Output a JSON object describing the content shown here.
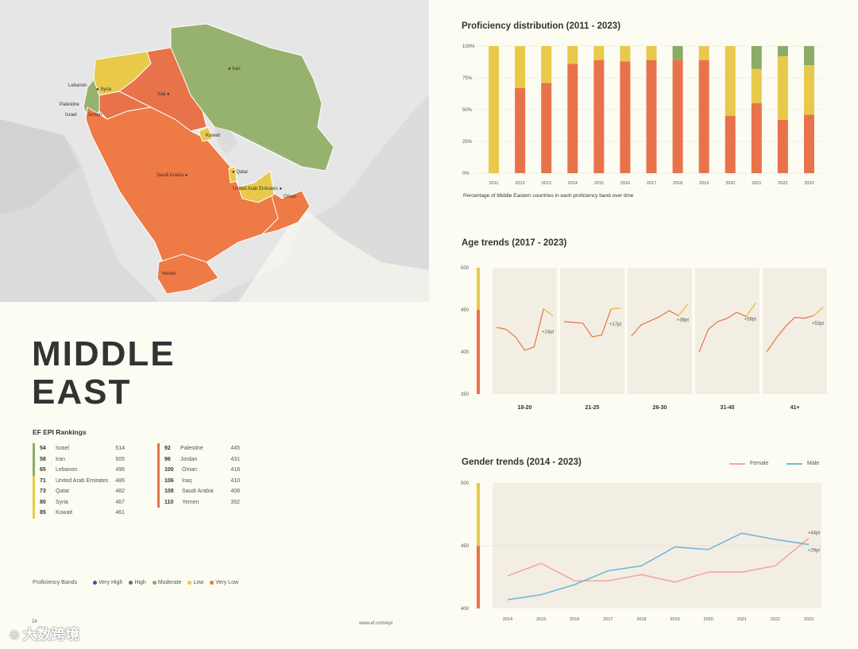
{
  "region_title_line1": "MIDDLE",
  "region_title_line2": "EAST",
  "rankings_title": "EF EPI Rankings",
  "rankings_left": [
    {
      "rank": "54",
      "country": "Israel",
      "score": "514",
      "color": "#8aac66"
    },
    {
      "rank": "58",
      "country": "Iran",
      "score": "505",
      "color": "#8aac66"
    },
    {
      "rank": "65",
      "country": "Lebanon",
      "score": "496",
      "color": "#8aac66"
    },
    {
      "rank": "71",
      "country": "United Arab Emirates",
      "score": "486",
      "color": "#e8c94a"
    },
    {
      "rank": "73",
      "country": "Qatar",
      "score": "482",
      "color": "#e8c94a"
    },
    {
      "rank": "80",
      "country": "Syria",
      "score": "467",
      "color": "#e8c94a"
    },
    {
      "rank": "85",
      "country": "Kuwait",
      "score": "461",
      "color": "#e8c94a"
    }
  ],
  "rankings_right": [
    {
      "rank": "92",
      "country": "Palestine",
      "score": "445",
      "color": "#e8734a"
    },
    {
      "rank": "96",
      "country": "Jordan",
      "score": "431",
      "color": "#e8734a"
    },
    {
      "rank": "100",
      "country": "Oman",
      "score": "418",
      "color": "#e8734a"
    },
    {
      "rank": "106",
      "country": "Iraq",
      "score": "410",
      "color": "#e8734a"
    },
    {
      "rank": "108",
      "country": "Saudi Arabia",
      "score": "408",
      "color": "#e8734a"
    },
    {
      "rank": "110",
      "country": "Yemen",
      "score": "392",
      "color": "#e8734a"
    }
  ],
  "bands_label": "Proficiency Bands",
  "bands": [
    {
      "label": "Very High",
      "color": "#3a55a4"
    },
    {
      "label": "High",
      "color": "#4f7a63"
    },
    {
      "label": "Moderate",
      "color": "#8aac66"
    },
    {
      "label": "Low",
      "color": "#e8c94a"
    },
    {
      "label": "Very Low",
      "color": "#e8734a"
    }
  ],
  "footer_url": "www.ef.com/epi",
  "page_number": "24",
  "watermark": "大数跨境",
  "map_labels": [
    "Iran",
    "Lebanon",
    "Syria",
    "Palestine",
    "Israel",
    "Jordan",
    "Iraq",
    "Kuwait",
    "Qatar",
    "Saudi Arabia",
    "United Arab Emirates",
    "Oman",
    "Yemen"
  ],
  "colors": {
    "very_low": "#e8734a",
    "low": "#e8c94a",
    "moderate": "#8aac66",
    "female": "#f0a8a8",
    "male": "#6db8d8"
  },
  "chart_data": [
    {
      "type": "bar",
      "stacked": true,
      "title": "Proficiency distribution (2011 - 2023)",
      "caption": "Percentage of Middle Eastern countries in each proficiency band over time",
      "categories": [
        "2011",
        "2012",
        "2013",
        "2014",
        "2015",
        "2016",
        "2017",
        "2018",
        "2019",
        "2020",
        "2021",
        "2022",
        "2023"
      ],
      "yticks": [
        "0%",
        "25%",
        "50%",
        "75%",
        "100%"
      ],
      "ylim": [
        0,
        100
      ],
      "series": [
        {
          "band": "very_low",
          "values": [
            0,
            67,
            71,
            86,
            89,
            88,
            89,
            89,
            89,
            45,
            55,
            42,
            46
          ]
        },
        {
          "band": "low",
          "values": [
            100,
            33,
            29,
            14,
            11,
            12,
            11,
            0,
            11,
            55,
            27,
            50,
            39
          ]
        },
        {
          "band": "moderate",
          "values": [
            0,
            0,
            0,
            0,
            0,
            0,
            0,
            11,
            0,
            0,
            18,
            8,
            15
          ]
        }
      ]
    },
    {
      "type": "line",
      "title": "Age trends (2017 - 2023)",
      "yticks": [
        "350",
        "400",
        "450",
        "500"
      ],
      "ylim": [
        350,
        500
      ],
      "groups": [
        {
          "label": "18-20",
          "change": "+14pt",
          "values": [
            429,
            427,
            418,
            402,
            406,
            451,
            443
          ]
        },
        {
          "label": "21-25",
          "change": "+17pt",
          "values": [
            436,
            435,
            434,
            418,
            420,
            451,
            452
          ]
        },
        {
          "label": "26-30",
          "change": "+38pt",
          "values": [
            419,
            432,
            437,
            442,
            449,
            443,
            457
          ]
        },
        {
          "label": "31-40",
          "change": "+58pt",
          "values": [
            400,
            427,
            436,
            440,
            447,
            442,
            458
          ]
        },
        {
          "label": "41+",
          "change": "+53pt",
          "values": [
            400,
            416,
            430,
            441,
            440,
            443,
            453
          ]
        }
      ]
    },
    {
      "type": "line",
      "title": "Gender trends (2014 - 2023)",
      "x": [
        "2014",
        "2015",
        "2016",
        "2017",
        "2018",
        "2019",
        "2020",
        "2021",
        "2022",
        "2023"
      ],
      "yticks": [
        "400",
        "450",
        "500"
      ],
      "ylim": [
        400,
        500
      ],
      "series": [
        {
          "name": "Female",
          "values": [
            426,
            436,
            422,
            422,
            427,
            421,
            429,
            429,
            434,
            456
          ],
          "change": "+29pt"
        },
        {
          "name": "Male",
          "values": [
            407,
            411,
            419,
            430,
            434,
            449,
            447,
            460,
            455,
            451
          ],
          "change": "+44pt"
        }
      ]
    }
  ]
}
